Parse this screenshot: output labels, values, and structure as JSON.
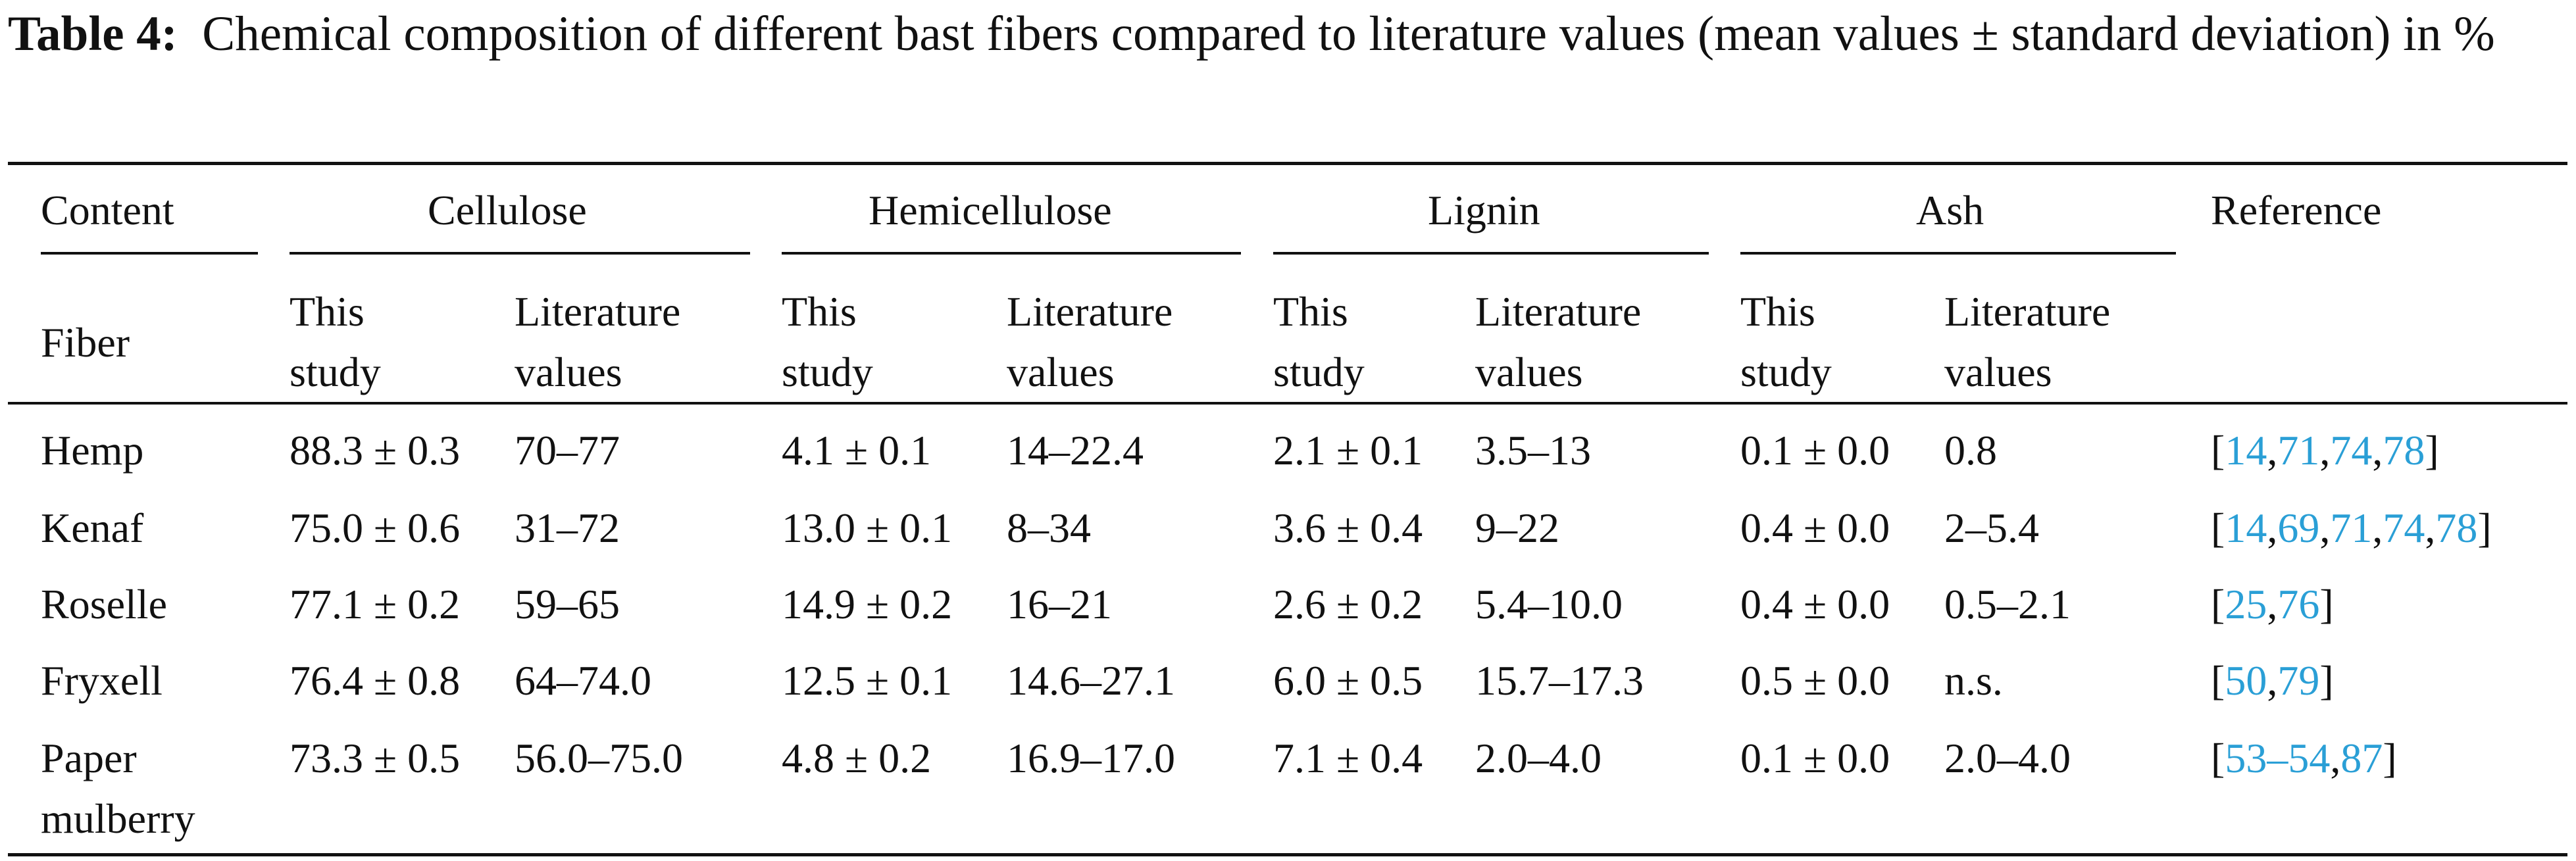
{
  "caption": {
    "label": "Table 4:",
    "text": "Chemical composition of different bast fibers compared to literature values (mean values ± standard deviation) in %"
  },
  "header": {
    "content": "Content",
    "fiber": "Fiber",
    "groups": [
      "Cellulose",
      "Hemicellulose",
      "Lignin",
      "Ash"
    ],
    "reference": "Reference",
    "this_study": [
      "This",
      "study"
    ],
    "literature": [
      "Literature",
      "values"
    ]
  },
  "rows": [
    {
      "fiber": [
        "Hemp"
      ],
      "cellulose": [
        "88.3 ± 0.3",
        "70–77"
      ],
      "hemicellulose": [
        "4.1 ± 0.1",
        "14–22.4"
      ],
      "lignin": [
        "2.1 ± 0.1",
        "3.5–13"
      ],
      "ash": [
        "0.1 ± 0.0",
        "0.8"
      ],
      "ref": [
        "[",
        "14",
        ",",
        "71",
        ",",
        "74",
        ",",
        "78",
        "]"
      ]
    },
    {
      "fiber": [
        "Kenaf"
      ],
      "cellulose": [
        "75.0 ± 0.6",
        "31–72"
      ],
      "hemicellulose": [
        "13.0 ± 0.1",
        "8–34"
      ],
      "lignin": [
        "3.6 ± 0.4",
        "9–22"
      ],
      "ash": [
        "0.4 ± 0.0",
        "2–5.4"
      ],
      "ref": [
        "[",
        "14",
        ",",
        "69",
        ",",
        "71",
        ",",
        "74",
        ",",
        "78",
        "]"
      ]
    },
    {
      "fiber": [
        "Roselle"
      ],
      "cellulose": [
        "77.1 ± 0.2",
        "59–65"
      ],
      "hemicellulose": [
        "14.9 ± 0.2",
        "16–21"
      ],
      "lignin": [
        "2.6 ± 0.2",
        "5.4–10.0"
      ],
      "ash": [
        "0.4 ± 0.0",
        "0.5–2.1"
      ],
      "ref": [
        "[",
        "25",
        ",",
        "76",
        "]"
      ]
    },
    {
      "fiber": [
        "Fryxell"
      ],
      "cellulose": [
        "76.4 ± 0.8",
        "64–74.0"
      ],
      "hemicellulose": [
        "12.5 ± 0.1",
        "14.6–27.1"
      ],
      "lignin": [
        "6.0 ± 0.5",
        "15.7–17.3"
      ],
      "ash": [
        "0.5 ± 0.0",
        "n.s."
      ],
      "ref": [
        "[",
        "50",
        ",",
        "79",
        "]"
      ]
    },
    {
      "fiber": [
        "Paper",
        "mulberry"
      ],
      "cellulose": [
        "73.3 ± 0.5",
        "56.0–75.0"
      ],
      "hemicellulose": [
        "4.8 ± 0.2",
        "16.9–17.0"
      ],
      "lignin": [
        "7.1 ± 0.4",
        "2.0–4.0"
      ],
      "ash": [
        "0.1 ± 0.0",
        "2.0–4.0"
      ],
      "ref": [
        "[",
        "53",
        "–",
        "54",
        ",",
        "87",
        "]"
      ]
    }
  ],
  "colors": {
    "text": "#111111",
    "link": "#2a9fd6",
    "rule": "#111111"
  }
}
